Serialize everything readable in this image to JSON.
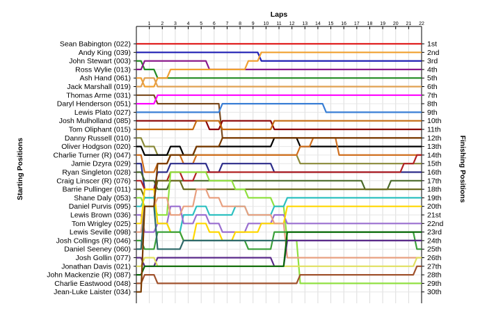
{
  "chart_data": {
    "type": "line",
    "title": "Laps",
    "ylabel_left": "Starting Positions",
    "ylabel_right": "Finishing Positions",
    "laps": [
      1,
      2,
      3,
      4,
      5,
      6,
      7,
      8,
      9,
      10,
      11,
      12,
      13,
      14,
      15,
      16,
      17,
      18,
      19,
      20,
      21,
      22
    ],
    "drivers": [
      "Sean Babington (022)",
      "Andy King (039)",
      "John Stewart (003)",
      "Ross Wylie (013)",
      "Ash Hand (061)",
      "Jack Marshall (019)",
      "Thomas Arme (031)",
      "Daryl Henderson (051)",
      "Lewis Plato (027)",
      "Josh Mulholland (085)",
      "Tom Oliphant (015)",
      "Danny Russell (010)",
      "Oliver Hodgson (020)",
      "Charlie Turner (R) (047)",
      "Jamie Dzyra (029)",
      "Ryan Singleton (028)",
      "Craig Linscer  (R) (076)",
      "Barrie Pullinger (011)",
      "Shane Daly (053)",
      "Daniel Purvis (095)",
      "Lewis Brown (036)",
      "Tom Wrigley (025)",
      "Lewis Seville (098)",
      "Josh Collings (R) (046)",
      "Daniel Seeney (060)",
      "Josh Gollin (077)",
      "Jonathan Davis (021)",
      "John Mackenzie (R) (087)",
      "Charlie Eastwood (048)",
      "Jean-Luke Laister (034)"
    ],
    "finish_labels": [
      "1st",
      "2nd",
      "3rd",
      "4th",
      "5th",
      "6th",
      "7th",
      "8th",
      "9th",
      "10th",
      "11th",
      "12th",
      "13th",
      "14th",
      "15th",
      "16th",
      "17th",
      "18th",
      "19th",
      "20th",
      "21st",
      "22nd",
      "23rd",
      "24th",
      "25th",
      "26th",
      "27th",
      "28th",
      "29th",
      "30th"
    ],
    "series": [
      {
        "color": "#e02020",
        "positions": [
          1,
          1,
          1,
          1,
          1,
          1,
          1,
          1,
          1,
          1,
          1,
          1,
          1,
          1,
          1,
          1,
          1,
          1,
          1,
          1,
          1,
          1,
          1
        ]
      },
      {
        "color": "#1f1fb4",
        "positions": [
          2,
          2,
          2,
          2,
          2,
          2,
          2,
          2,
          2,
          2,
          3,
          3,
          3,
          3,
          3,
          3,
          3,
          3,
          3,
          3,
          3,
          3,
          3
        ]
      },
      {
        "color": "#228b22",
        "positions": [
          3,
          4,
          5,
          5,
          5,
          5,
          5,
          5,
          5,
          5,
          5,
          5,
          5,
          5,
          5,
          5,
          5,
          5,
          5,
          5,
          5,
          5,
          5
        ]
      },
      {
        "color": "#8b1a8b",
        "positions": [
          4,
          3,
          3,
          3,
          3,
          3,
          4,
          4,
          4,
          4,
          4,
          4,
          4,
          4,
          4,
          4,
          4,
          4,
          4,
          4,
          4,
          4,
          4
        ]
      },
      {
        "color": "#f0a030",
        "positions": [
          5,
          6,
          5,
          4,
          4,
          4,
          4,
          4,
          4,
          3,
          2,
          2,
          2,
          2,
          2,
          2,
          2,
          2,
          2,
          2,
          2,
          2,
          2
        ]
      },
      {
        "color": "#e0a050",
        "positions": [
          6,
          5,
          6,
          6,
          6,
          6,
          6,
          6,
          6,
          6,
          6,
          6,
          6,
          6,
          6,
          6,
          6,
          6,
          6,
          6,
          6,
          6,
          6
        ]
      },
      {
        "color": "#7b4a1e",
        "positions": [
          7,
          7,
          8,
          8,
          8,
          8,
          8,
          12,
          12,
          12,
          12,
          12,
          12,
          12,
          12,
          12,
          12,
          12,
          12,
          12,
          12,
          12,
          12
        ]
      },
      {
        "color": "#ff00ff",
        "positions": [
          8,
          8,
          7,
          7,
          7,
          7,
          7,
          7,
          7,
          7,
          7,
          7,
          7,
          7,
          7,
          7,
          7,
          7,
          7,
          7,
          7,
          7,
          7
        ]
      },
      {
        "color": "#3a7fd5",
        "positions": [
          9,
          9,
          9,
          9,
          9,
          9,
          9,
          8,
          8,
          8,
          8,
          8,
          8,
          8,
          8,
          9,
          9,
          9,
          9,
          9,
          9,
          9,
          9
        ]
      },
      {
        "color": "#8b0000",
        "positions": [
          10,
          10,
          10,
          10,
          10,
          10,
          11,
          10,
          10,
          10,
          10,
          11,
          11,
          11,
          11,
          11,
          11,
          11,
          11,
          11,
          11,
          11,
          11
        ]
      },
      {
        "color": "#c46a10",
        "positions": [
          11,
          11,
          11,
          11,
          11,
          10,
          10,
          11,
          11,
          11,
          11,
          10,
          10,
          10,
          10,
          10,
          10,
          10,
          10,
          10,
          10,
          10,
          10
        ]
      },
      {
        "color": "#8a8a3a",
        "positions": [
          12,
          13,
          14,
          14,
          14,
          14,
          14,
          14,
          14,
          14,
          14,
          14,
          14,
          15,
          15,
          15,
          15,
          15,
          15,
          15,
          15,
          15,
          15
        ]
      },
      {
        "color": "#000000",
        "positions": [
          13,
          14,
          14,
          13,
          14,
          13,
          13,
          13,
          13,
          13,
          13,
          12,
          12,
          13,
          13,
          13,
          13,
          13,
          13,
          13,
          13,
          13,
          13
        ]
      },
      {
        "color": "#d07020",
        "positions": [
          14,
          16,
          15,
          14,
          15,
          14,
          14,
          14,
          14,
          14,
          14,
          14,
          14,
          13,
          12,
          12,
          14,
          14,
          14,
          14,
          14,
          14,
          14
        ]
      },
      {
        "color": "#2d2d8a",
        "positions": [
          15,
          18,
          16,
          15,
          15,
          15,
          16,
          15,
          15,
          15,
          15,
          16,
          16,
          16,
          16,
          16,
          16,
          16,
          16,
          16,
          16,
          16,
          16
        ]
      },
      {
        "color": "#4a6a2a",
        "positions": [
          16,
          17,
          18,
          17,
          17,
          17,
          17,
          17,
          17,
          17,
          17,
          17,
          17,
          17,
          17,
          17,
          17,
          17,
          18,
          18,
          17,
          17,
          17
        ]
      },
      {
        "color": "#b22222",
        "positions": [
          17,
          18,
          17,
          16,
          17,
          16,
          16,
          16,
          16,
          16,
          16,
          16,
          16,
          16,
          16,
          16,
          16,
          16,
          16,
          16,
          16,
          15,
          14
        ]
      },
      {
        "color": "#6b6b1e",
        "positions": [
          18,
          19,
          17,
          17,
          18,
          18,
          18,
          18,
          18,
          18,
          18,
          18,
          18,
          18,
          18,
          18,
          18,
          18,
          18,
          18,
          18,
          18,
          18
        ]
      },
      {
        "color": "#90e040",
        "positions": [
          19,
          20,
          21,
          16,
          16,
          16,
          17,
          17,
          18,
          19,
          19,
          20,
          24,
          29,
          29,
          29,
          29,
          29,
          29,
          29,
          29,
          29,
          29
        ]
      },
      {
        "color": "#2ec0c0",
        "positions": [
          20,
          19,
          22,
          23,
          21,
          20,
          21,
          21,
          20,
          21,
          21,
          20,
          19,
          19,
          19,
          19,
          19,
          19,
          19,
          19,
          19,
          19,
          19
        ]
      },
      {
        "color": "#9a6fd0",
        "positions": [
          21,
          23,
          22,
          20,
          22,
          21,
          22,
          23,
          23,
          22,
          22,
          21,
          22,
          22,
          22,
          22,
          22,
          22,
          22,
          22,
          22,
          22,
          22
        ]
      },
      {
        "color": "#ffd700",
        "positions": [
          22,
          18,
          22,
          23,
          24,
          22,
          23,
          24,
          23,
          23,
          22,
          22,
          20,
          20,
          20,
          20,
          20,
          20,
          20,
          20,
          20,
          20,
          20
        ]
      },
      {
        "color": "#e8a080",
        "positions": [
          23,
          20,
          19,
          21,
          20,
          18,
          19,
          20,
          20,
          21,
          21,
          22,
          26,
          26,
          26,
          26,
          26,
          26,
          26,
          26,
          26,
          26,
          26
        ]
      },
      {
        "color": "#3aa03a",
        "positions": [
          24,
          25,
          23,
          23,
          24,
          24,
          24,
          24,
          24,
          25,
          25,
          23,
          23,
          23,
          23,
          23,
          23,
          23,
          23,
          23,
          23,
          23,
          25
        ]
      },
      {
        "color": "#2f6a6a",
        "positions": [
          25,
          20,
          25,
          25,
          24,
          24,
          24,
          24,
          24,
          24,
          24,
          24,
          24,
          24,
          24,
          24,
          24,
          24,
          24,
          24,
          24,
          24,
          24
        ]
      },
      {
        "color": "#5a2a8a",
        "positions": [
          26,
          27,
          26,
          26,
          26,
          26,
          26,
          26,
          26,
          26,
          26,
          27,
          24,
          24,
          24,
          24,
          24,
          24,
          24,
          24,
          24,
          24,
          24
        ]
      },
      {
        "color": "#e0e060",
        "positions": [
          27,
          26,
          27,
          27,
          27,
          27,
          27,
          27,
          27,
          27,
          27,
          27,
          27,
          27,
          27,
          27,
          27,
          27,
          27,
          27,
          27,
          27,
          26
        ]
      },
      {
        "color": "#0a6a0a",
        "positions": [
          28,
          27,
          27,
          27,
          27,
          27,
          27,
          27,
          27,
          27,
          27,
          27,
          23,
          23,
          23,
          23,
          23,
          23,
          23,
          23,
          23,
          23,
          23
        ]
      },
      {
        "color": "#a0522d",
        "positions": [
          29,
          28,
          29,
          29,
          29,
          29,
          29,
          29,
          29,
          29,
          29,
          29,
          29,
          28,
          28,
          28,
          28,
          28,
          28,
          28,
          28,
          28,
          27
        ]
      },
      {
        "color": "#7a3b00",
        "positions": [
          30,
          20,
          15,
          14,
          14,
          13,
          13,
          12,
          12,
          12,
          12,
          12,
          12,
          12,
          12,
          12,
          12,
          12,
          12,
          12,
          12,
          12,
          12
        ]
      }
    ]
  }
}
